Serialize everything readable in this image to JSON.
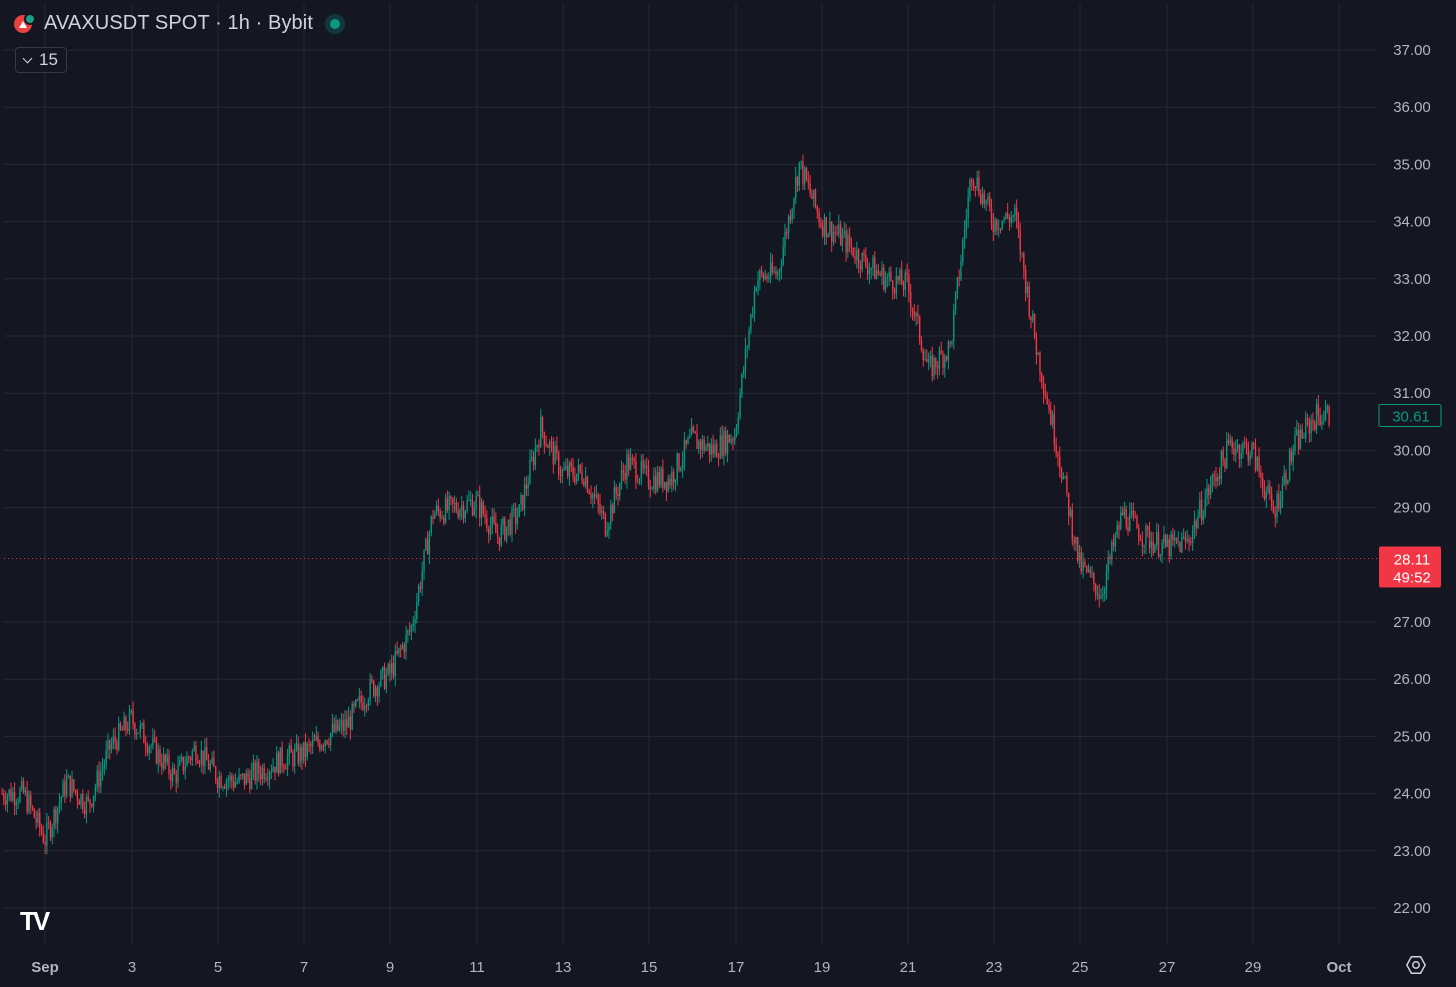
{
  "header": {
    "title": "AVAXUSDT SPOT · 1h · Bybit",
    "interval_badge": "15"
  },
  "colors": {
    "background": "#141722",
    "grid": "#262a36",
    "up": "#089981",
    "down": "#f23645",
    "axis_text": "#b2b5be"
  },
  "price_axis": [
    "37.00",
    "36.00",
    "35.00",
    "34.00",
    "33.00",
    "32.00",
    "31.00",
    "30.00",
    "29.00",
    "27.00",
    "26.00",
    "25.00",
    "24.00",
    "23.00",
    "22.00"
  ],
  "time_axis": [
    "Sep",
    "3",
    "5",
    "7",
    "9",
    "11",
    "13",
    "15",
    "17",
    "19",
    "21",
    "23",
    "25",
    "27",
    "29",
    "Oct"
  ],
  "last_price_label": "30.61",
  "price_line_label": "28.11",
  "price_line_countdown": "49:52",
  "watermark": "TV",
  "chart_data": {
    "type": "line",
    "title": "AVAXUSDT SPOT · 1h · Bybit",
    "xlabel": "",
    "ylabel": "",
    "ylim": [
      21.5,
      37.4
    ],
    "grid": true,
    "x_unit": "date (Sep 1 – Oct 1)",
    "series": [
      {
        "x": [
          "Sep 1 00:00",
          "Sep 1 12:00",
          "Sep 2 00:00",
          "Sep 2 12:00",
          "Sep 3 00:00",
          "Sep 3 12:00",
          "Sep 4 00:00",
          "Sep 4 12:00",
          "Sep 5 00:00",
          "Sep 5 12:00",
          "Sep 6 00:00",
          "Sep 6 12:00",
          "Sep 7 00:00",
          "Sep 7 12:00",
          "Sep 8 00:00",
          "Sep 8 12:00",
          "Sep 9 00:00",
          "Sep 9 12:00",
          "Sep 10 00:00",
          "Sep 10 12:00",
          "Sep 11 00:00",
          "Sep 11 12:00",
          "Sep 12 00:00",
          "Sep 12 12:00",
          "Sep 13 00:00",
          "Sep 13 12:00",
          "Sep 14 00:00",
          "Sep 14 12:00",
          "Sep 15 00:00",
          "Sep 15 12:00",
          "Sep 16 00:00",
          "Sep 16 12:00",
          "Sep 17 00:00",
          "Sep 17 12:00",
          "Sep 18 00:00",
          "Sep 18 12:00",
          "Sep 19 00:00",
          "Sep 19 12:00",
          "Sep 20 00:00",
          "Sep 20 12:00",
          "Sep 21 00:00",
          "Sep 21 12:00",
          "Sep 22 00:00",
          "Sep 22 12:00",
          "Sep 23 00:00",
          "Sep 23 12:00",
          "Sep 24 00:00",
          "Sep 24 12:00",
          "Sep 25 00:00",
          "Sep 25 12:00",
          "Sep 26 00:00",
          "Sep 26 12:00",
          "Sep 27 00:00",
          "Sep 27 12:00",
          "Sep 28 00:00",
          "Sep 28 12:00",
          "Sep 29 00:00",
          "Sep 29 12:00",
          "Sep 30 00:00",
          "Sep 30 12:00",
          "Oct 1 00:00",
          "Oct 1 12:00"
        ],
        "values": [
          24.0,
          24.0,
          23.2,
          24.2,
          23.8,
          24.8,
          25.3,
          24.8,
          24.3,
          24.8,
          24.3,
          24.2,
          24.4,
          24.6,
          24.7,
          25.0,
          25.2,
          25.8,
          26.1,
          26.9,
          28.9,
          29.0,
          29.1,
          28.5,
          28.9,
          30.4,
          29.6,
          29.6,
          28.7,
          29.8,
          29.5,
          29.5,
          30.2,
          30.0,
          30.3,
          33.0,
          33.1,
          35.0,
          34.0,
          33.7,
          33.3,
          33.0,
          32.9,
          31.4,
          31.8,
          34.9,
          34.0,
          34.1,
          31.8,
          30.0,
          28.0,
          27.5,
          28.9,
          28.5,
          28.3,
          28.4,
          29.3,
          30.1,
          30.0,
          28.9,
          30.1,
          30.61
        ]
      }
    ]
  }
}
